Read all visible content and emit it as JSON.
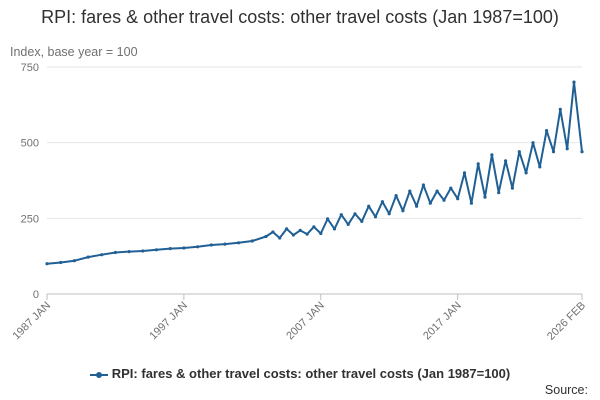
{
  "chart_data": {
    "type": "line",
    "title": "RPI: fares & other travel costs: other travel costs (Jan 1987=100)",
    "ylabel": "Index, base year = 100",
    "xlabel": "",
    "ylim": [
      0,
      750
    ],
    "y_ticks": [
      "0",
      "250",
      "500",
      "750"
    ],
    "y_tick_values": [
      0,
      250,
      500,
      750
    ],
    "x_ticks": [
      "1987 JAN",
      "1997 JAN",
      "2007 JAN",
      "2017 JAN",
      "2026 FEB"
    ],
    "x_tick_values": [
      1987.0,
      1997.0,
      2007.0,
      2017.0,
      2026.083
    ],
    "grid": "horizontal",
    "legend_position": "bottom",
    "series": [
      {
        "name": "RPI: fares & other travel costs: other travel costs (Jan 1987=100)",
        "color": "#206095",
        "x": [
          1987.0,
          1988.0,
          1989.0,
          1990.0,
          1991.0,
          1992.0,
          1993.0,
          1994.0,
          1995.0,
          1996.0,
          1997.0,
          1998.0,
          1999.0,
          2000.0,
          2001.0,
          2002.0,
          2003.0,
          2003.5,
          2004.0,
          2004.5,
          2005.0,
          2005.5,
          2006.0,
          2006.5,
          2007.0,
          2007.5,
          2008.0,
          2008.5,
          2009.0,
          2009.5,
          2010.0,
          2010.5,
          2011.0,
          2011.5,
          2012.0,
          2012.5,
          2013.0,
          2013.5,
          2014.0,
          2014.5,
          2015.0,
          2015.5,
          2016.0,
          2016.5,
          2017.0,
          2017.5,
          2018.0,
          2018.5,
          2019.0,
          2019.5,
          2020.0,
          2020.5,
          2021.0,
          2021.5,
          2022.0,
          2022.5,
          2023.0,
          2023.5,
          2024.0,
          2024.5,
          2025.0,
          2025.5,
          2026.083
        ],
        "values": [
          100,
          104,
          110,
          122,
          130,
          137,
          140,
          142,
          146,
          150,
          152,
          156,
          162,
          165,
          169,
          175,
          190,
          205,
          185,
          215,
          195,
          210,
          198,
          222,
          200,
          248,
          215,
          262,
          230,
          265,
          240,
          290,
          255,
          305,
          265,
          325,
          275,
          340,
          290,
          360,
          300,
          340,
          310,
          350,
          315,
          400,
          300,
          430,
          320,
          460,
          335,
          440,
          350,
          470,
          400,
          500,
          420,
          540,
          470,
          610,
          480,
          700,
          470
        ]
      }
    ]
  },
  "legend": {
    "label": "RPI: fares & other travel costs: other travel costs (Jan 1987=100)"
  },
  "source_label": "Source:"
}
